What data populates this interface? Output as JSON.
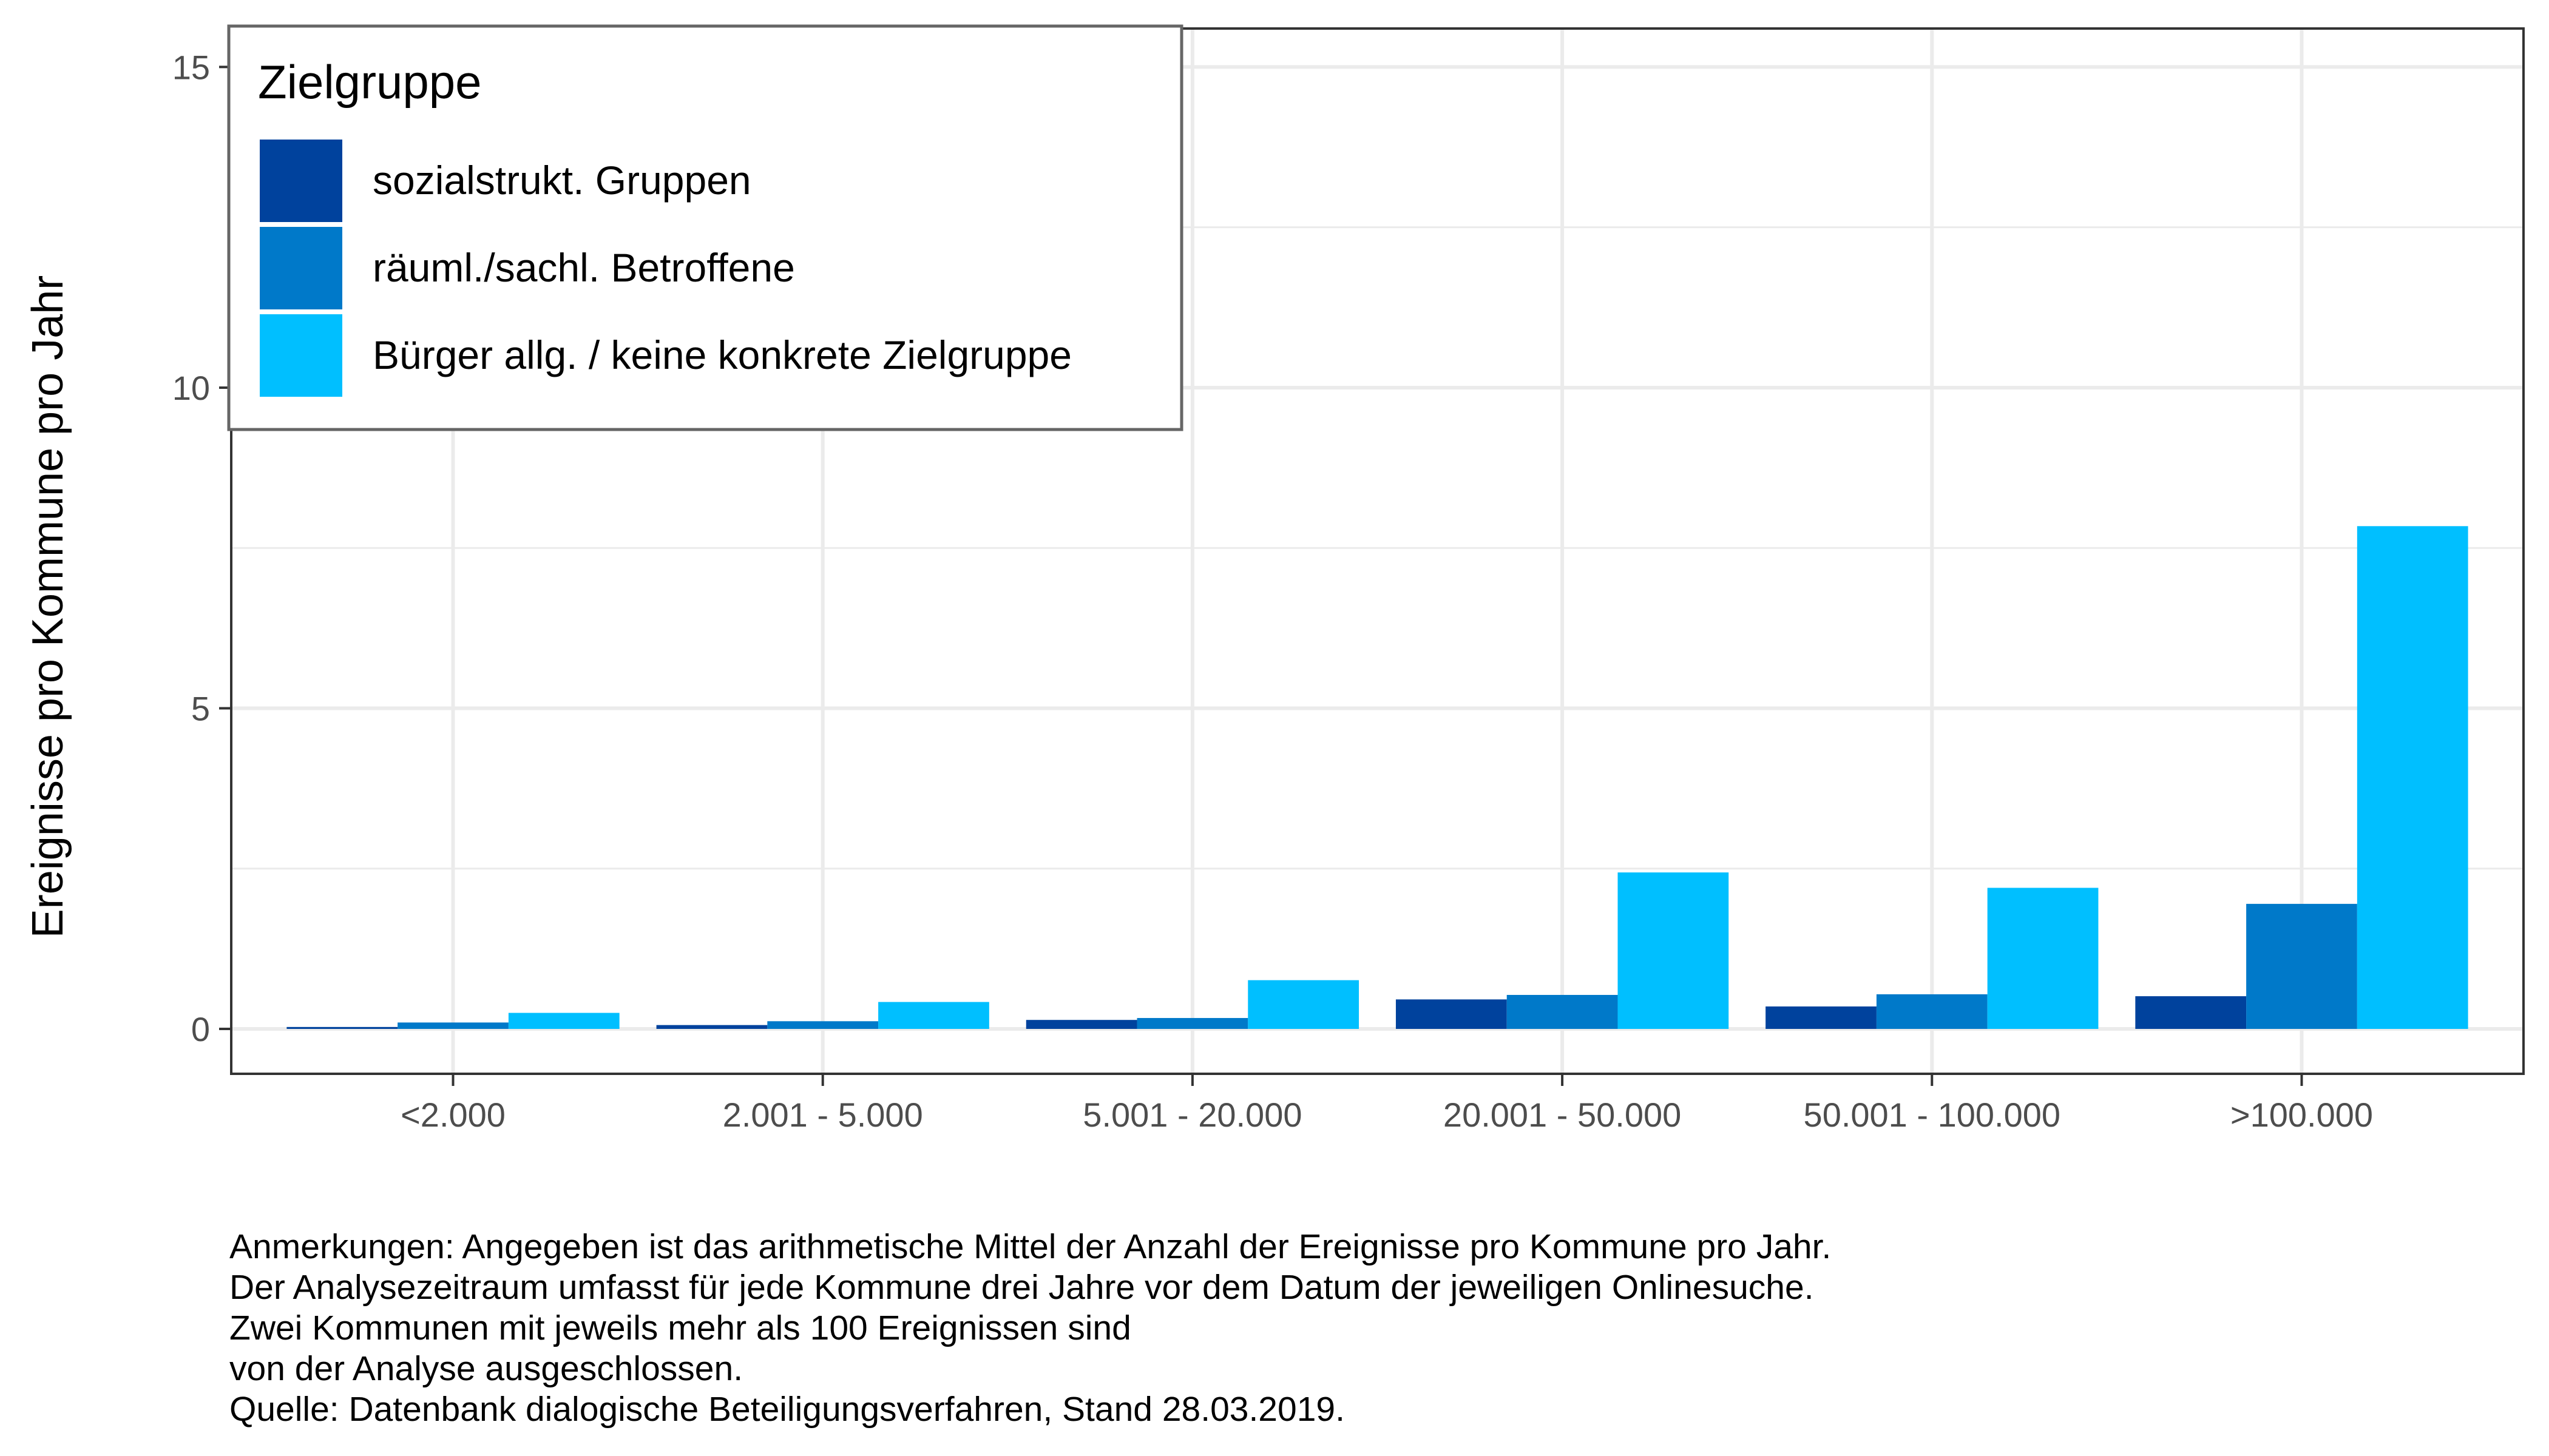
{
  "chart_data": {
    "type": "bar",
    "title": "",
    "xlabel": "",
    "ylabel": "Ereignisse pro Kommune pro Jahr",
    "ylim": [
      -0.7,
      15.6
    ],
    "y_ticks": [
      0,
      5,
      10,
      15
    ],
    "grid": true,
    "legend_position": "top-left",
    "legend_title": "Zielgruppe",
    "categories": [
      "<2.000",
      "2.001 - 5.000",
      "5.001 - 20.000",
      "20.001 - 50.000",
      "50.001 - 100.000",
      ">100.000"
    ],
    "series": [
      {
        "name": "sozialstrukt. Gruppen",
        "color": "#00429D",
        "values": [
          0.03,
          0.06,
          0.14,
          0.46,
          0.35,
          0.51
        ]
      },
      {
        "name": "räuml./sachl. Betroffene",
        "color": "#0079C9",
        "values": [
          0.1,
          0.12,
          0.17,
          0.53,
          0.54,
          1.95
        ]
      },
      {
        "name": "Bürger allg. / keine konkrete Zielgruppe",
        "color": "#00BFFF",
        "values": [
          0.25,
          0.42,
          0.76,
          2.44,
          2.2,
          7.84
        ]
      }
    ]
  },
  "notes": [
    "Anmerkungen: Angegeben ist das arithmetische Mittel der Anzahl der Ereignisse pro Kommune pro Jahr.",
    "Der Analysezeitraum umfasst für jede Kommune drei Jahre vor dem Datum der jeweiligen Onlinesuche.",
    "Zwei Kommunen mit jeweils mehr als 100 Ereignissen sind",
    "von der Analyse ausgeschlossen.",
    "Quelle: Datenbank dialogische Beteiligungsverfahren, Stand 28.03.2019."
  ]
}
